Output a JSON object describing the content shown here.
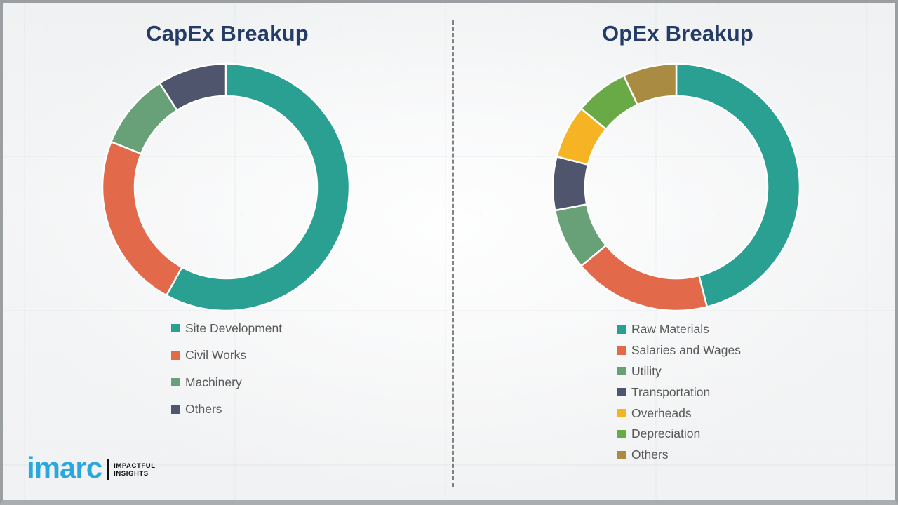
{
  "chart_data": [
    {
      "type": "pie",
      "subtype": "donut",
      "title": "CapEx Breakup",
      "labels": [
        "Site Development",
        "Civil Works",
        "Machinery",
        "Others"
      ],
      "values": [
        58,
        23,
        10,
        9
      ],
      "values_unit": "% (estimated from slice angles, no data labels shown)",
      "colors": [
        "#2aa092",
        "#e2694a",
        "#68a078",
        "#50556e"
      ],
      "start_angle": "top",
      "direction": "clockwise",
      "legend_position": "below-left"
    },
    {
      "type": "pie",
      "subtype": "donut",
      "title": "OpEx Breakup",
      "labels": [
        "Raw Materials",
        "Salaries and Wages",
        "Utility",
        "Transportation",
        "Overheads",
        "Depreciation",
        "Others"
      ],
      "values": [
        46,
        18,
        8,
        7,
        7,
        7,
        7
      ],
      "values_unit": "% (estimated from slice angles, no data labels shown)",
      "colors": [
        "#2aa092",
        "#e2694a",
        "#68a078",
        "#50556e",
        "#f6b324",
        "#69aa46",
        "#a98b41"
      ],
      "start_angle": "top",
      "direction": "clockwise",
      "legend_position": "below-left"
    }
  ],
  "divider": {
    "style": "vertical-dashed",
    "color": "#6e6e6e"
  },
  "title_color": "#253c66",
  "legend_text_color": "#595959",
  "logo": {
    "brand": "imarc",
    "brand_color": "#29a8e0",
    "tagline_line1": "IMPACTFUL",
    "tagline_line2": "INSIGHTS"
  }
}
